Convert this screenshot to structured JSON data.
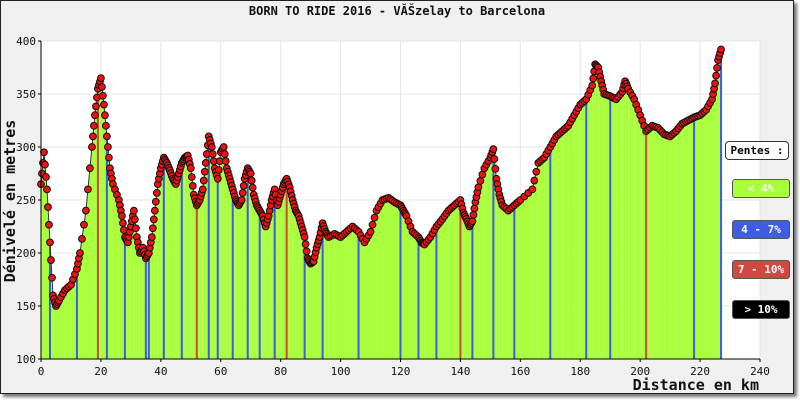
{
  "title": "BORN TO RIDE 2016 - VĂŠzelay to Barcelona",
  "colors": {
    "fill_lt4": "#aaff3c",
    "fill_4_7": "#3e5ce6",
    "fill_7_10": "#d2473f",
    "fill_gt10": "#000000",
    "marker": "#ee1111",
    "grid": "#e6e6e6",
    "plot_bg": "#ffffff"
  },
  "legend": {
    "title": "Pentes :",
    "items": [
      {
        "label": "< 4%",
        "color": "#aaff3c"
      },
      {
        "label": "4 - 7%",
        "color": "#3e5ce6"
      },
      {
        "label": "7 - 10%",
        "color": "#d2473f"
      },
      {
        "label": "> 10%",
        "color": "#000000"
      }
    ]
  },
  "chart_data": {
    "type": "area",
    "title": "BORN TO RIDE 2016 - VĂŠzelay to Barcelona",
    "xlabel": "Distance en km",
    "ylabel": "Dénivelé en metres",
    "xlim": [
      0,
      240
    ],
    "ylim": [
      100,
      400
    ],
    "x_ticks": [
      0,
      20,
      40,
      60,
      80,
      100,
      120,
      140,
      160,
      180,
      200,
      220,
      240
    ],
    "y_ticks": [
      100,
      150,
      200,
      250,
      300,
      350,
      400
    ],
    "grid": true,
    "legend_placement": "right",
    "series": [
      {
        "x": [
          0,
          1,
          2,
          3,
          4,
          5,
          6,
          8,
          10,
          12,
          13,
          15,
          17,
          18,
          19,
          20,
          21,
          22,
          23,
          24,
          26,
          27,
          28,
          29,
          30,
          31,
          32,
          33,
          34,
          35,
          36,
          37,
          38,
          39,
          40,
          41,
          42,
          43,
          44,
          45,
          46,
          47,
          48,
          49,
          50,
          51,
          52,
          53,
          54,
          55,
          56,
          57,
          58,
          59,
          60,
          61,
          62,
          63,
          64,
          65,
          66,
          67,
          68,
          69,
          70,
          71,
          72,
          73,
          74,
          75,
          76,
          77,
          78,
          79,
          80,
          81,
          82,
          83,
          84,
          85,
          86,
          87,
          88,
          89,
          90,
          91,
          92,
          93,
          94,
          95,
          96,
          98,
          100,
          102,
          104,
          106,
          108,
          110,
          112,
          114,
          116,
          118,
          120,
          121,
          122,
          124,
          126,
          127,
          128,
          130,
          132,
          134,
          136,
          138,
          140,
          141,
          142,
          143,
          144,
          145,
          146,
          148,
          150,
          151,
          152,
          153,
          154,
          156,
          158,
          160,
          164,
          166,
          168,
          170,
          172,
          174,
          176,
          178,
          180,
          182,
          184,
          185,
          186,
          187,
          188,
          190,
          192,
          194,
          195,
          196,
          198,
          200,
          202,
          204,
          206,
          208,
          210,
          212,
          214,
          216,
          218,
          220,
          222,
          224,
          225,
          226,
          227
        ],
        "y": [
          265,
          295,
          260,
          210,
          160,
          150,
          155,
          165,
          170,
          185,
          200,
          240,
          300,
          330,
          355,
          365,
          340,
          310,
          280,
          265,
          250,
          235,
          215,
          210,
          225,
          240,
          215,
          200,
          205,
          195,
          200,
          215,
          240,
          265,
          280,
          290,
          285,
          278,
          270,
          265,
          275,
          285,
          290,
          292,
          280,
          255,
          245,
          250,
          260,
          285,
          310,
          300,
          280,
          270,
          295,
          300,
          280,
          270,
          260,
          250,
          245,
          250,
          270,
          280,
          275,
          255,
          245,
          240,
          235,
          225,
          235,
          250,
          260,
          245,
          255,
          265,
          270,
          262,
          250,
          240,
          235,
          225,
          215,
          195,
          190,
          192,
          205,
          215,
          228,
          220,
          215,
          218,
          215,
          220,
          225,
          220,
          210,
          220,
          240,
          250,
          252,
          248,
          245,
          240,
          235,
          220,
          215,
          210,
          208,
          215,
          225,
          232,
          240,
          245,
          250,
          238,
          232,
          225,
          230,
          248,
          262,
          280,
          290,
          298,
          270,
          255,
          245,
          240,
          245,
          250,
          260,
          285,
          290,
          300,
          310,
          315,
          320,
          330,
          340,
          345,
          358,
          378,
          375,
          362,
          350,
          348,
          345,
          352,
          362,
          355,
          345,
          330,
          315,
          320,
          318,
          312,
          310,
          315,
          322,
          325,
          328,
          330,
          335,
          345,
          360,
          382,
          392
        ]
      }
    ]
  }
}
